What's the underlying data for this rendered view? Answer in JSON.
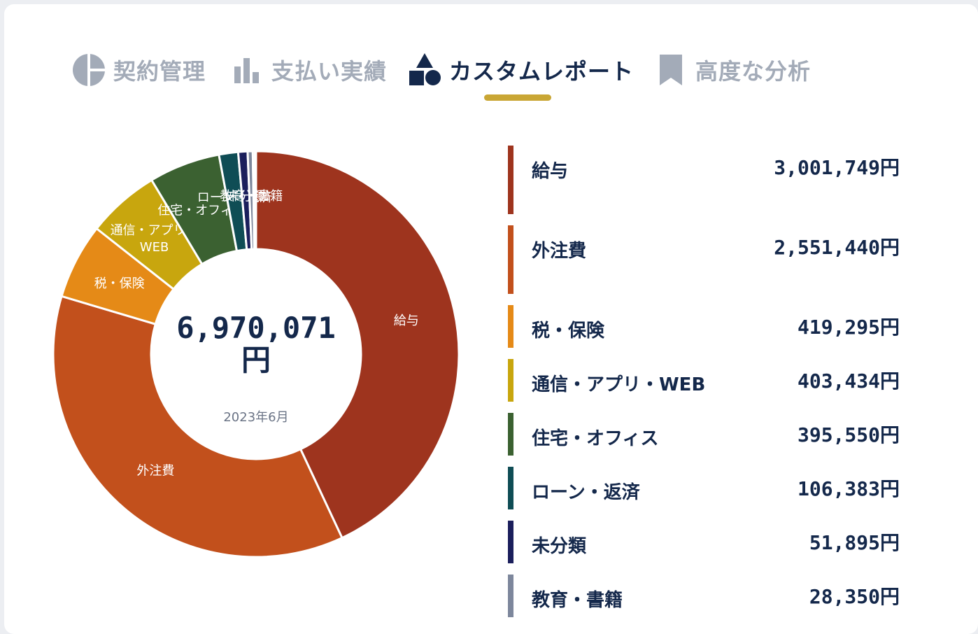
{
  "tabs": [
    {
      "label": "契約管理",
      "icon": "pie-chart-icon",
      "active": false
    },
    {
      "label": "支払い実績",
      "icon": "bar-chart-icon",
      "active": false
    },
    {
      "label": "カスタムレポート",
      "icon": "shapes-icon",
      "active": true
    },
    {
      "label": "高度な分析",
      "icon": "bookmark-icon",
      "active": false
    }
  ],
  "colors": {
    "accent": "#c9a634",
    "text": "#14284b",
    "inactive": "#a3abb8"
  },
  "summary": {
    "total": "6,970,071円",
    "period": "2023年6月"
  },
  "chart_data": {
    "type": "pie",
    "subtype": "donut",
    "categories": [
      "給与",
      "外注費",
      "税・保険",
      "通信・アプリ・WEB",
      "住宅・オフィス",
      "ローン・返済",
      "未分類",
      "教育・書籍"
    ],
    "values": [
      3001749,
      2551440,
      419295,
      403434,
      395550,
      106383,
      51895,
      28350
    ],
    "colors": [
      "#9e341e",
      "#c2501c",
      "#e58a17",
      "#c8a60e",
      "#3b6131",
      "#0f4d55",
      "#1b1f5c",
      "#7d879c"
    ],
    "slice_labels": [
      "給与",
      "外注費",
      "税・保険",
      "通信・アプリ・\nWEB",
      "住宅・オフィス",
      "ローン・返済",
      "未分類",
      "教育・書籍"
    ],
    "extra_small_slices": [
      {
        "color": "#b7bcc6",
        "value": 12000
      },
      {
        "color": "#e6e8ec",
        "value": 6000
      }
    ]
  },
  "legend": [
    {
      "name": "給与",
      "amount": "3,001,749円",
      "color": "#9e341e"
    },
    {
      "name": "外注費",
      "amount": "2,551,440円",
      "color": "#c2501c"
    },
    {
      "name": "税・保険",
      "amount": "419,295円",
      "color": "#e58a17"
    },
    {
      "name": "通信・アプリ・WEB",
      "amount": "403,434円",
      "color": "#c8a60e"
    },
    {
      "name": "住宅・オフィス",
      "amount": "395,550円",
      "color": "#3b6131"
    },
    {
      "name": "ローン・返済",
      "amount": "106,383円",
      "color": "#0f4d55"
    },
    {
      "name": "未分類",
      "amount": "51,895円",
      "color": "#1b1f5c"
    },
    {
      "name": "教育・書籍",
      "amount": "28,350円",
      "color": "#7d879c"
    }
  ]
}
